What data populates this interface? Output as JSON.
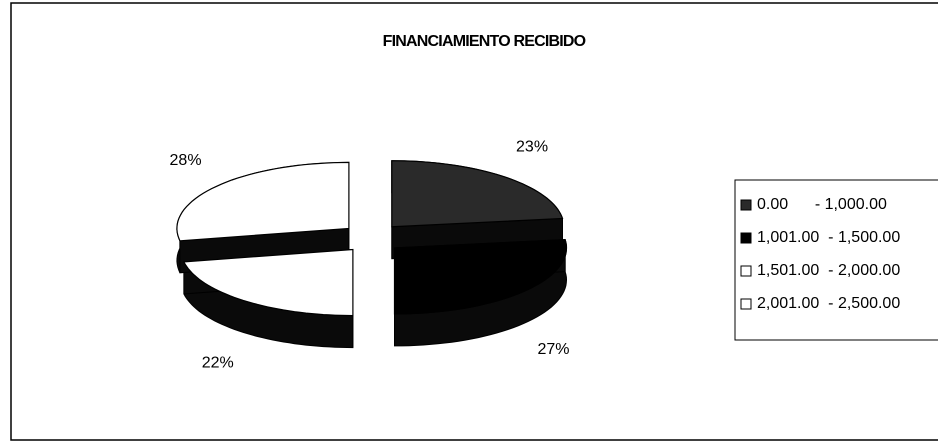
{
  "chart_data": {
    "type": "pie3d",
    "title": "FINANCIAMIENTO RECIBIDO",
    "categories": [
      "0.00      - 1,000.00",
      "1,001.00  - 1,500.00",
      "1,501.00  - 2,000.00",
      "2,001.00  - 2,500.00"
    ],
    "values": [
      23,
      27,
      22,
      28
    ],
    "value_labels": [
      "23%",
      "27%",
      "22%",
      "28%"
    ],
    "colors": [
      "#2a2a2a",
      "#000000",
      "#ffffff",
      "#ffffff"
    ],
    "legend": "right"
  }
}
